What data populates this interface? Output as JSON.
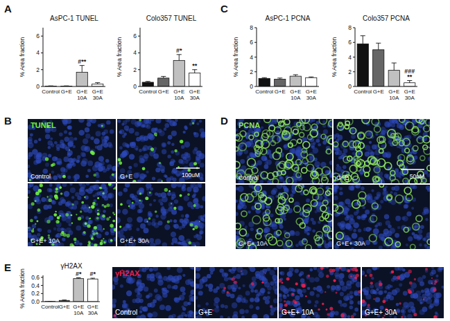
{
  "chart_data": [
    {
      "type": "bar",
      "title": "AsPC-1 TUNEL",
      "y_label": "% Area fraction",
      "categories": [
        "Control",
        "G+E",
        "G+E 10A",
        "G+E 30A"
      ],
      "values": [
        0.05,
        0.05,
        1.7,
        0.3
      ],
      "errors": [
        0.02,
        0.02,
        0.8,
        0.15
      ],
      "annotations": [
        null,
        null,
        [
          "#**"
        ],
        null
      ],
      "colors": [
        "#111111",
        "#666666",
        "#c0c0c0",
        "#ffffff"
      ],
      "ylim": [
        0,
        7
      ],
      "yticks": [
        0,
        2,
        4,
        6
      ],
      "grid": false
    },
    {
      "type": "bar",
      "title": "Colo357 TUNEL",
      "y_label": "% Area fraction",
      "categories": [
        "Control",
        "G+E",
        "G+E 10A",
        "G+E 30A"
      ],
      "values": [
        0.5,
        1.0,
        3.1,
        1.6
      ],
      "errors": [
        0.1,
        0.2,
        0.7,
        0.4
      ],
      "annotations": [
        null,
        null,
        [
          "#*"
        ],
        [
          "**"
        ]
      ],
      "colors": [
        "#111111",
        "#666666",
        "#c0c0c0",
        "#ffffff"
      ],
      "ylim": [
        0,
        7
      ],
      "yticks": [
        0,
        2,
        4,
        6
      ],
      "grid": false
    },
    {
      "type": "bar",
      "title": "AsPC-1 PCNA",
      "y_label": "% Area fraction",
      "categories": [
        "Control",
        "G+E",
        "G+E 10A",
        "G+E 30A"
      ],
      "values": [
        1.1,
        1.0,
        1.4,
        1.2
      ],
      "errors": [
        0.1,
        0.15,
        0.2,
        0.1
      ],
      "annotations": [
        null,
        null,
        null,
        null
      ],
      "colors": [
        "#111111",
        "#666666",
        "#c0c0c0",
        "#ffffff"
      ],
      "ylim": [
        0,
        8
      ],
      "yticks": [
        0,
        2,
        4,
        6,
        8
      ],
      "grid": false
    },
    {
      "type": "bar",
      "title": "Colo357 PCNA",
      "y_label": "% Area fraction",
      "categories": [
        "Control",
        "G+E",
        "G+E 10A",
        "G+E 30A"
      ],
      "values": [
        5.8,
        5.0,
        2.2,
        0.5
      ],
      "errors": [
        1.1,
        0.9,
        1.0,
        0.3
      ],
      "annotations": [
        null,
        null,
        null,
        [
          "###",
          "**"
        ]
      ],
      "colors": [
        "#111111",
        "#666666",
        "#c0c0c0",
        "#ffffff"
      ],
      "ylim": [
        0,
        8
      ],
      "yticks": [
        0,
        2,
        4,
        6,
        8
      ],
      "grid": false
    },
    {
      "type": "bar",
      "title": "γH2AX",
      "y_label": "% Area fraction",
      "categories": [
        "Control",
        "G+E",
        "G+E 10A",
        "G+E 30A"
      ],
      "values": [
        0.005,
        0.03,
        0.57,
        0.56
      ],
      "errors": [
        0.002,
        0.01,
        0.02,
        0.02
      ],
      "annotations": [
        null,
        null,
        [
          "#*"
        ],
        [
          "#*"
        ]
      ],
      "colors": [
        "#111111",
        "#666666",
        "#c0c0c0",
        "#ffffff"
      ],
      "ylim": [
        0,
        0.65
      ],
      "yticks": [
        {
          "value": 0,
          "label": "0.0"
        },
        {
          "value": 0.2,
          "label": "0.2"
        },
        {
          "value": 0.4,
          "label": "0.4"
        },
        {
          "value": 0.6,
          "label": "0.6"
        }
      ],
      "grid": false
    }
  ],
  "panel_labels": [
    "A",
    "B",
    "C",
    "D",
    "E"
  ],
  "image_panels": [
    {
      "stain": "TUNEL",
      "color": "#6ef03c",
      "scale_bar": "100uM",
      "tiles": [
        "Control",
        "G+E",
        "G+E+ 10A",
        "G+E+ 30A"
      ]
    },
    {
      "stain": "PCNA",
      "color": "#8fe45c",
      "scale_bar": "50uM",
      "tiles": [
        "Control",
        "G+E",
        "G+E+ 10A",
        "G+E+ 30A"
      ]
    },
    {
      "stain": "γH2AX",
      "color": "#e8204c",
      "tiles": [
        "Control",
        "G+E",
        "G+E+ 10A",
        "G+E+ 30A"
      ]
    }
  ]
}
